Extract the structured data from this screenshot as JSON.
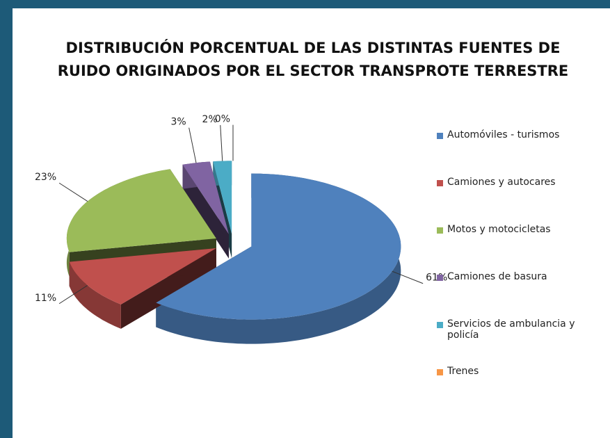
{
  "chart_data": {
    "type": "pie",
    "title": [
      "DISTRIBUCIÓN PORCENTUAL DE LAS DISTINTAS FUENTES DE",
      "RUIDO ORIGINADOS POR EL SECTOR TRANSPROTE TERRESTRE"
    ],
    "categories": [
      "Automóviles - turismos",
      "Camiones y autocares",
      "Motos y motocicletas",
      "Camiones de basura",
      "Servicios de ambulancia y policía",
      "Trenes"
    ],
    "values": [
      61,
      11,
      23,
      3,
      2,
      0
    ],
    "value_labels": [
      "61%",
      "11%",
      "23%",
      "3%",
      "2%",
      "0%"
    ],
    "colors": [
      "#4f81bd",
      "#c0504d",
      "#9bbb59",
      "#8064a2",
      "#4bacc6",
      "#f79646"
    ],
    "legend": "right"
  }
}
